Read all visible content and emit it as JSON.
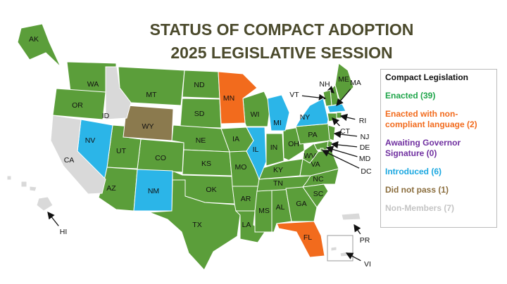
{
  "title": [
    "STATUS OF COMPACT ADOPTION",
    "2025 LEGISLATIVE SESSION"
  ],
  "legend": {
    "title": "Compact Legislation",
    "items": [
      {
        "label": "Enacted (39)",
        "color": "#5b9e3a",
        "label_color": "#1fa54a",
        "states": [
          "WA",
          "OR",
          "MT",
          "ND",
          "SD",
          "NE",
          "KS",
          "OK",
          "TX",
          "CO",
          "UT",
          "AZ",
          "IA",
          "MO",
          "AR",
          "LA",
          "MS",
          "AL",
          "TN",
          "KY",
          "IN",
          "OH",
          "WV",
          "VA",
          "NC",
          "SC",
          "GA",
          "PA",
          "WI",
          "ME",
          "NH",
          "VT",
          "DE",
          "MD",
          "DC",
          "NJ",
          "AK",
          "CT",
          "RI"
        ]
      },
      {
        "label": "Enacted with non-compliant language (2)",
        "color": "#f26b1d",
        "label_color": "#f26b1d",
        "states": [
          "MN",
          "FL"
        ]
      },
      {
        "label": "Awaiting Governor Signature (0)",
        "color": "#7030a0",
        "label_color": "#7030a0",
        "states": []
      },
      {
        "label": "Introduced (6)",
        "color": "#2bb5e8",
        "label_color": "#1aa7e0",
        "states": [
          "NV",
          "NM",
          "IL",
          "MI",
          "NY",
          "MA"
        ]
      },
      {
        "label": "Did not pass (1)",
        "color": "#8b7a4e",
        "label_color": "#8b6e3e",
        "states": [
          "WY"
        ]
      },
      {
        "label": "Non-Members (7)",
        "color": "#d9d9d9",
        "label_color": "#c4c4c4",
        "states": [
          "CA",
          "ID",
          "HI",
          "PR",
          "VI"
        ]
      }
    ]
  }
}
